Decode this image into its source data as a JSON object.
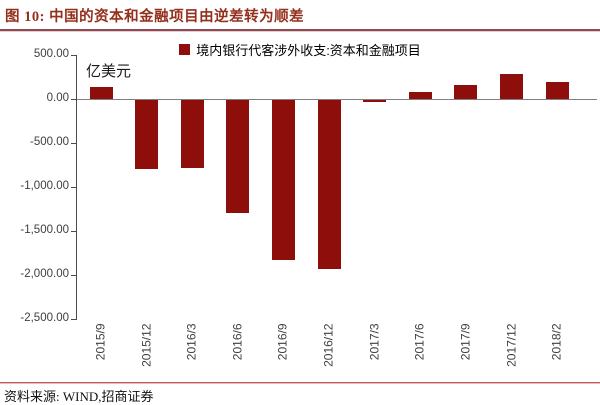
{
  "header": {
    "title": "图 10: 中国的资本和金融项目由逆差转为顺差"
  },
  "legend": {
    "label": "境内银行代客涉外收支:资本和金融项目"
  },
  "unit_label": "亿美元",
  "footer": {
    "source": "资料来源: WIND,招商证券"
  },
  "colors": {
    "bar": "#8E0E0B",
    "title_text": "#942F1C",
    "title_rule": "#8E4B54",
    "footer_rule": "#C25B5B",
    "axis": "#4D4D4D",
    "zero_line": "#808080"
  },
  "chart_data": {
    "type": "bar",
    "title": "境内银行代客涉外收支:资本和金融项目",
    "xlabel": "",
    "ylabel": "亿美元",
    "categories": [
      "2015/9",
      "2015/12",
      "2016/3",
      "2016/6",
      "2016/9",
      "2016/12",
      "2017/3",
      "2017/6",
      "2017/9",
      "2017/12",
      "2018/2"
    ],
    "values": [
      140,
      -800,
      -780,
      -1300,
      -1830,
      -1930,
      -35,
      80,
      155,
      285,
      190
    ],
    "ylim": [
      -2500,
      500
    ],
    "ytick_step": 500,
    "ytick_labels": [
      "500.00",
      "0.00",
      "-500.00",
      "-1,000.00",
      "-1,500.00",
      "-2,000.00",
      "-2,500.00"
    ],
    "legend_entries": [
      "境内银行代客涉外收支:资本和金融项目"
    ],
    "legend_position": "top-center",
    "grid": false,
    "bar_color": "#8E0E0B"
  }
}
